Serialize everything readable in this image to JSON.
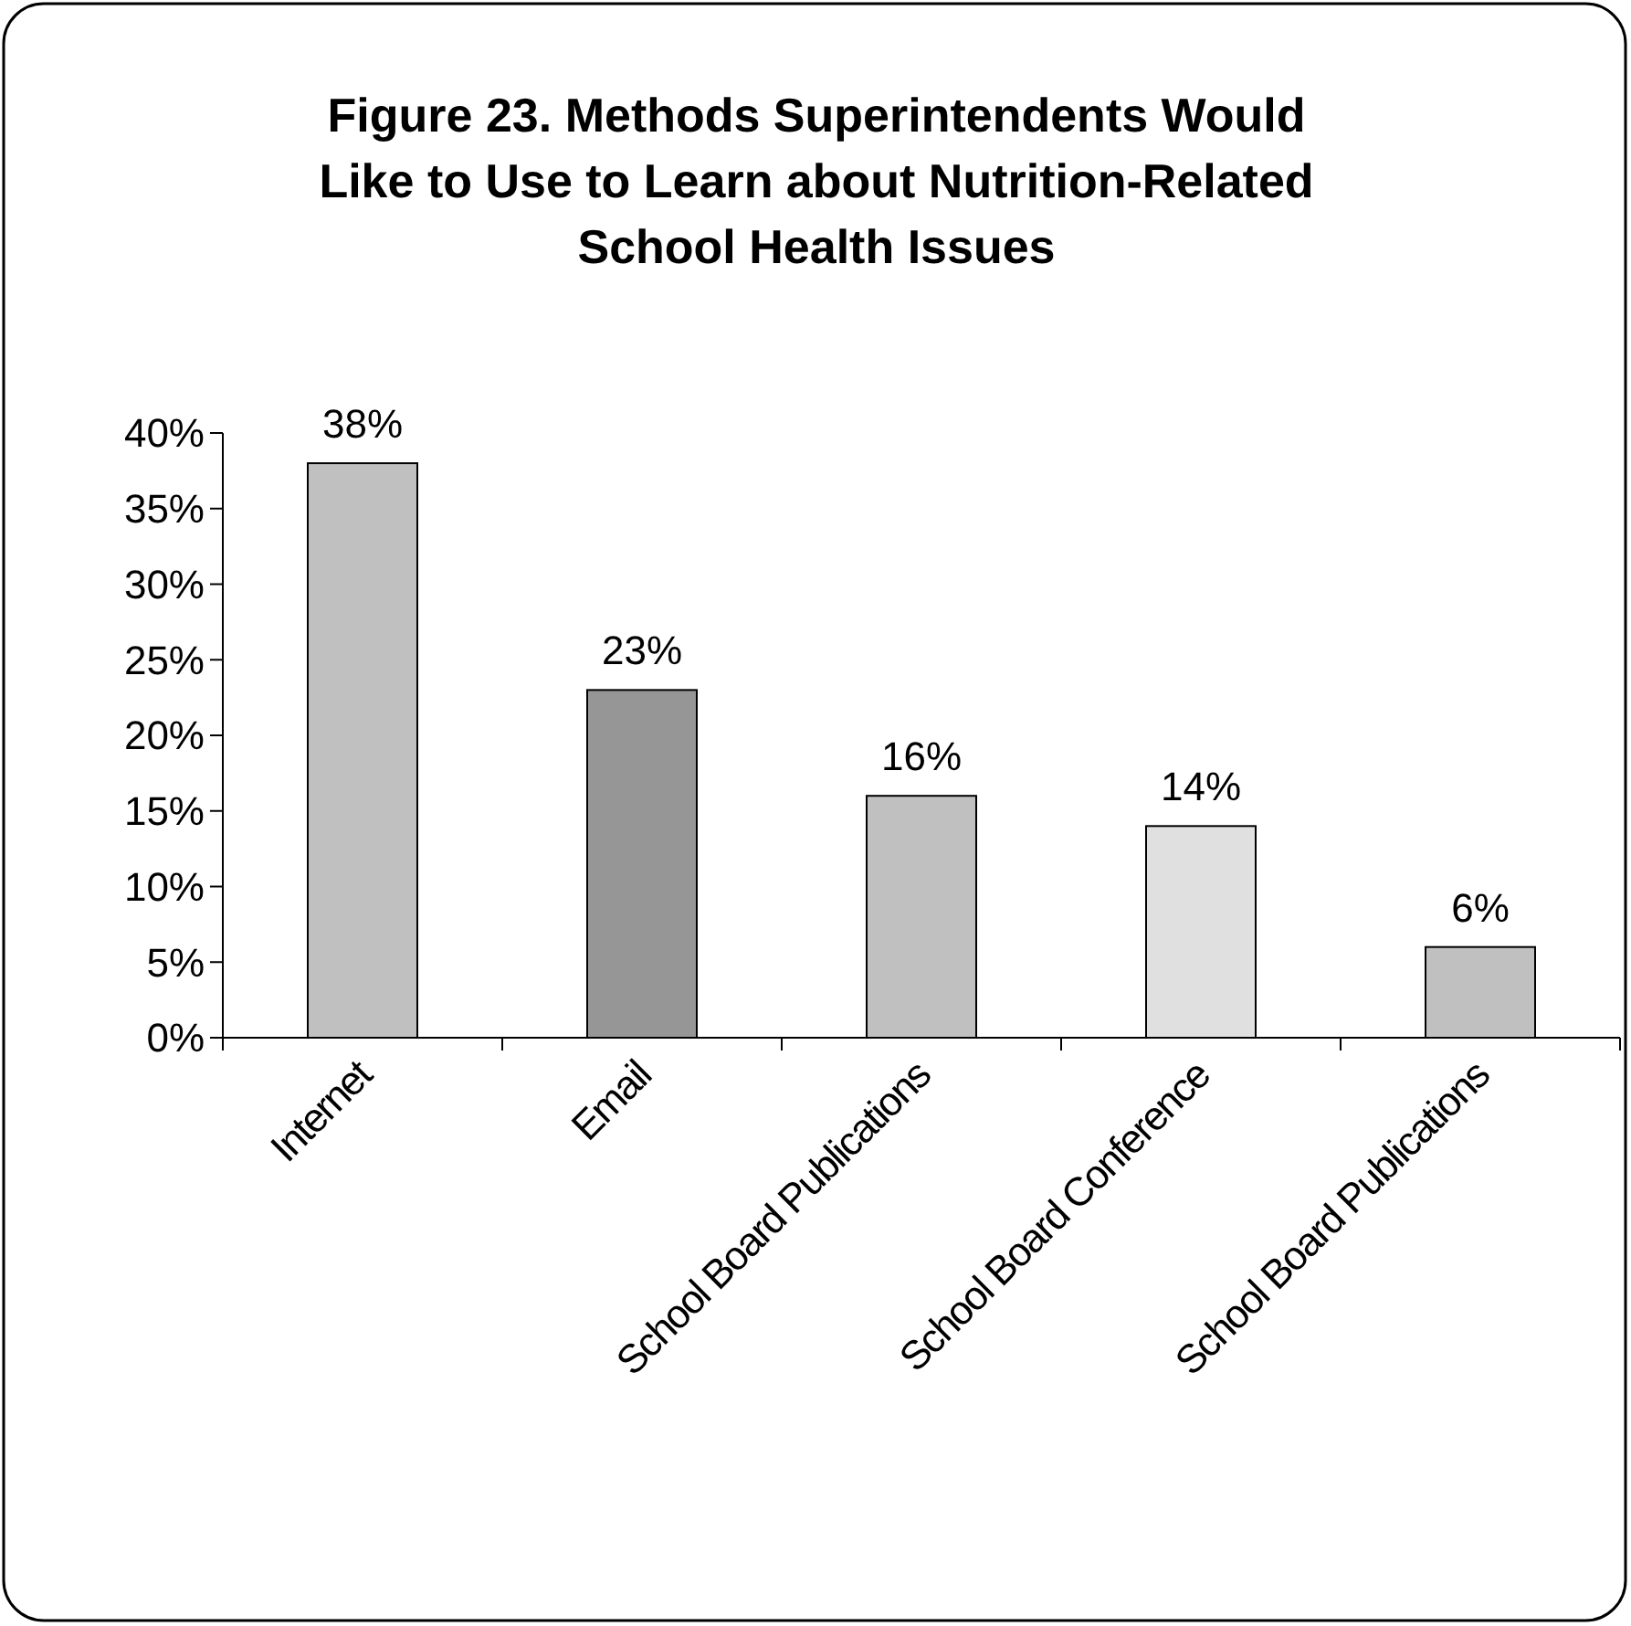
{
  "chart_data": {
    "type": "bar",
    "title": "Figure 23. Methods Superintendents Would Like to Use to Learn about Nutrition-Related School Health Issues",
    "categories": [
      "Internet",
      "Email",
      "School Board Publications",
      "School Board Conference",
      "School Board Publications"
    ],
    "values": [
      38,
      23,
      16,
      14,
      6
    ],
    "colors": [
      "#c0c0c0",
      "#969696",
      "#c0c0c0",
      "#e0e0e0",
      "#c0c0c0"
    ],
    "value_labels": [
      "38%",
      "23%",
      "16%",
      "14%",
      "6%"
    ],
    "ylim": [
      0,
      40
    ],
    "yticks": [
      {
        "value": 0,
        "label": "0%"
      },
      {
        "value": 5,
        "label": "5%"
      },
      {
        "value": 10,
        "label": "10%"
      },
      {
        "value": 15,
        "label": "15%"
      },
      {
        "value": 20,
        "label": "20%"
      },
      {
        "value": 25,
        "label": "25%"
      },
      {
        "value": 30,
        "label": "30%"
      },
      {
        "value": 35,
        "label": "35%"
      },
      {
        "value": 40,
        "label": "40%"
      }
    ],
    "grid": false
  }
}
